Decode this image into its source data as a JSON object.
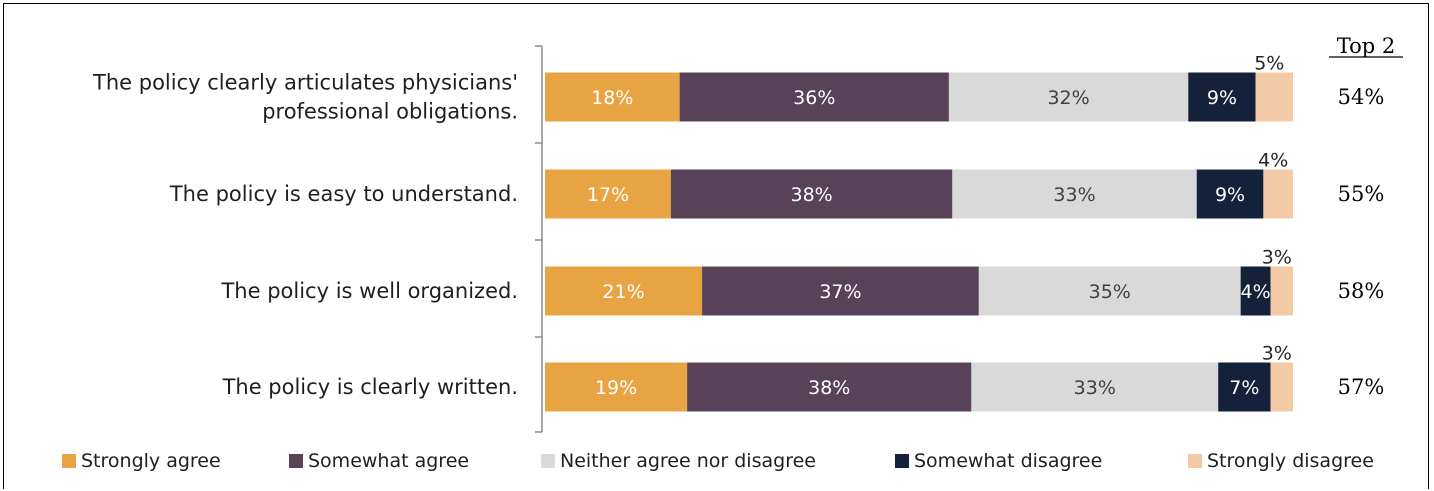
{
  "chart_data": {
    "type": "bar",
    "orientation": "horizontal",
    "stacked": true,
    "categories": [
      "The policy clearly articulates physicians' professional obligations.",
      "The policy is easy to understand.",
      "The policy is well organized.",
      "The policy is clearly written."
    ],
    "category_lines": [
      [
        "The policy clearly articulates physicians'",
        "professional obligations."
      ],
      [
        "The policy is easy to understand."
      ],
      [
        "The policy is well organized."
      ],
      [
        "The policy is clearly written."
      ]
    ],
    "series": [
      {
        "name": "Strongly agree",
        "color": "#E8A443",
        "label_color": "#ffffff",
        "values": [
          18,
          17,
          21,
          19
        ]
      },
      {
        "name": "Somewhat agree",
        "color": "#574257",
        "label_color": "#ffffff",
        "values": [
          36,
          38,
          37,
          38
        ]
      },
      {
        "name": "Neither agree nor disagree",
        "color": "#D9D9D9",
        "label_color": "#404040",
        "values": [
          32,
          33,
          35,
          33
        ]
      },
      {
        "name": "Somewhat disagree",
        "color": "#14213A",
        "label_color": "#ffffff",
        "values": [
          9,
          9,
          4,
          7
        ]
      },
      {
        "name": "Strongly disagree",
        "color": "#F4C9A6",
        "label_color": "#404040",
        "values": [
          5,
          4,
          3,
          3
        ]
      }
    ],
    "top2": {
      "header": "Top 2",
      "values": [
        "54%",
        "55%",
        "58%",
        "57%"
      ]
    },
    "value_suffix": "%",
    "legend_position": "bottom",
    "grid": false
  }
}
